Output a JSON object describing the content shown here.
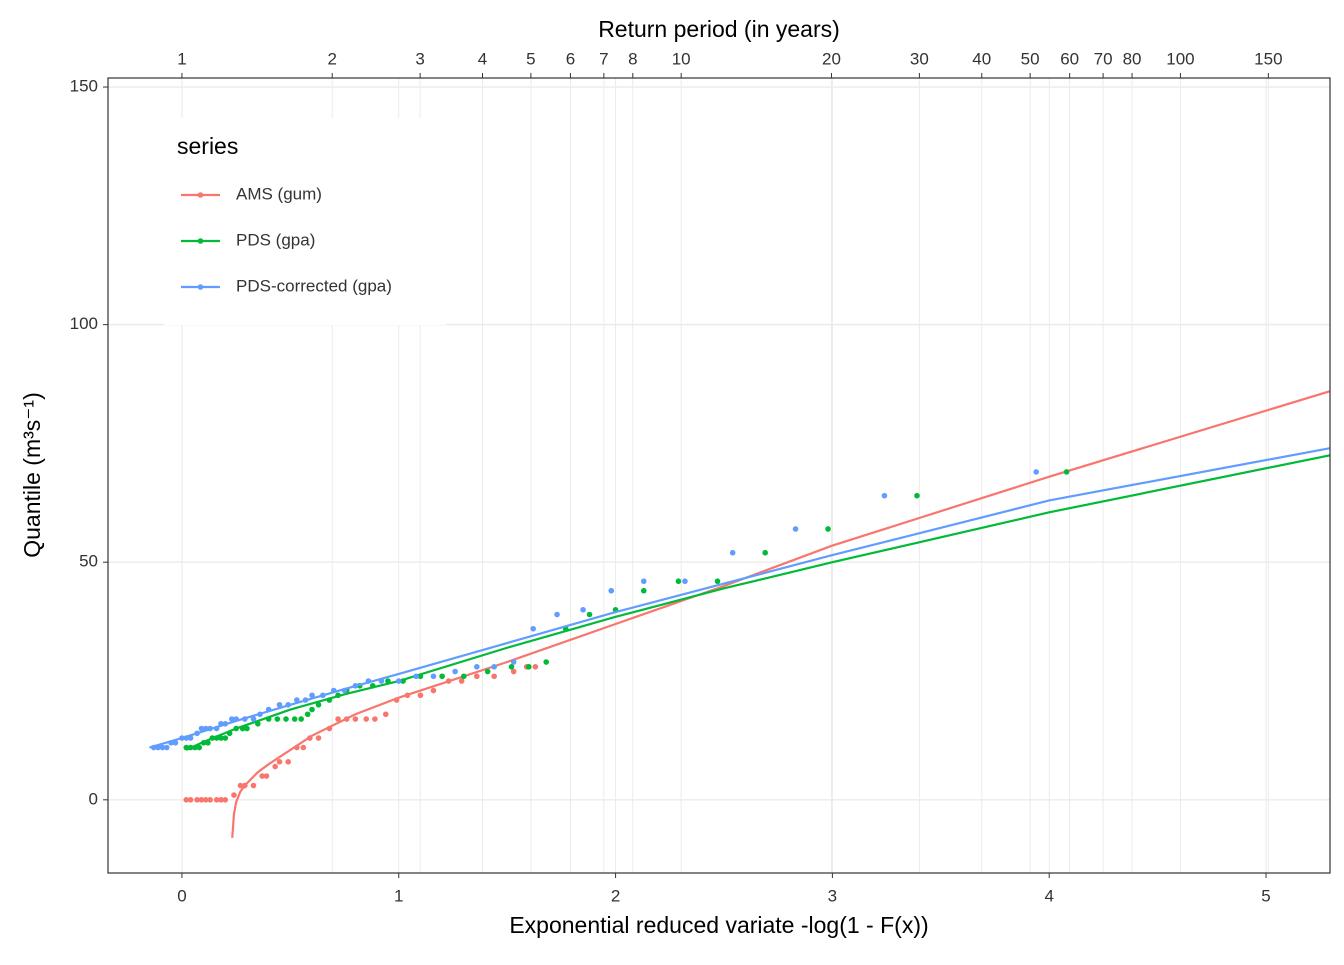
{
  "chart_data": {
    "type": "scatter-fit",
    "x_label": "Exponential reduced variate -log(1 - F(x))",
    "y_label": "Quantile (m³s⁻¹)",
    "x2_label": "Return period (in years)",
    "xlim": [
      -0.341,
      5.295
    ],
    "ylim": [
      -15.4,
      151.9
    ],
    "xticks": [
      0,
      1,
      2,
      3,
      4,
      5
    ],
    "yticks": [
      0,
      50,
      100,
      150
    ],
    "x2ticks": [
      1,
      2,
      3,
      4,
      5,
      6,
      7,
      8,
      10,
      20,
      30,
      40,
      50,
      60,
      70,
      80,
      100,
      150
    ],
    "x2_transform": "ln",
    "grid": true,
    "legend_title": "series",
    "legend_position": "top-left",
    "series": [
      {
        "name": "AMS (gum)",
        "color": "#f8766d",
        "x": [
          0.02,
          0.04,
          0.07,
          0.09,
          0.11,
          0.13,
          0.16,
          0.18,
          0.2,
          0.24,
          0.27,
          0.29,
          0.33,
          0.37,
          0.39,
          0.43,
          0.45,
          0.49,
          0.53,
          0.56,
          0.59,
          0.63,
          0.68,
          0.72,
          0.76,
          0.8,
          0.85,
          0.89,
          0.94,
          0.99,
          1.04,
          1.1,
          1.16,
          1.23,
          1.29,
          1.36,
          1.44,
          1.53,
          1.59,
          1.63
        ],
        "values": [
          0,
          0,
          0,
          0,
          0,
          0,
          0,
          0,
          0,
          1,
          3,
          3,
          3,
          5,
          5,
          7,
          8,
          8,
          11,
          11,
          13,
          13,
          15,
          17,
          17,
          17,
          17,
          17,
          18,
          21,
          22,
          22,
          23,
          25,
          25,
          26,
          26,
          27,
          28,
          28
        ],
        "fit_x": [
          0.232,
          0.24,
          0.25,
          0.27,
          0.3,
          0.35,
          0.4,
          0.5,
          0.6,
          0.8,
          1.0,
          1.2,
          1.5,
          2.0,
          2.5,
          3.0,
          4.0,
          5.295
        ],
        "fit_values": [
          -8,
          -3,
          -0.5,
          1.8,
          3.5,
          5.8,
          7.5,
          10.5,
          13.5,
          18,
          21.5,
          24.5,
          29,
          37,
          45,
          53.5,
          68,
          86
        ]
      },
      {
        "name": "PDS (gpa)",
        "color": "#00ba38",
        "x": [
          0.02,
          0.04,
          0.06,
          0.08,
          0.1,
          0.12,
          0.14,
          0.16,
          0.18,
          0.2,
          0.22,
          0.25,
          0.28,
          0.3,
          0.35,
          0.4,
          0.44,
          0.48,
          0.52,
          0.55,
          0.58,
          0.6,
          0.63,
          0.68,
          0.72,
          0.76,
          0.82,
          0.88,
          0.95,
          1.02,
          1.1,
          1.2,
          1.3,
          1.41,
          1.52,
          1.6,
          1.68,
          1.77,
          1.88,
          2.0,
          2.13,
          2.29,
          2.47,
          2.69,
          2.98,
          3.39,
          4.08
        ],
        "values": [
          11,
          11,
          11,
          11,
          12,
          12,
          13,
          13,
          13,
          13,
          14,
          15,
          15,
          15,
          16,
          17,
          17,
          17,
          17,
          17,
          18,
          19,
          20,
          21,
          22,
          23,
          24,
          24,
          25,
          25,
          26,
          26,
          26,
          27,
          28,
          28,
          29,
          36,
          39,
          40,
          44,
          46,
          46,
          52,
          57,
          64,
          69
        ],
        "fit_x": [
          0.02,
          0.1,
          0.25,
          0.5,
          0.75,
          1.0,
          1.5,
          2.0,
          2.5,
          3.0,
          4.0,
          5.295
        ],
        "fit_values": [
          10.5,
          12.2,
          15,
          19,
          22.2,
          25,
          32,
          38.5,
          44.5,
          50,
          60.5,
          72.5
        ]
      },
      {
        "name": "PDS-corrected (gpa)",
        "color": "#619cff",
        "x": [
          -0.13,
          -0.11,
          -0.09,
          -0.07,
          -0.05,
          -0.03,
          0,
          0.02,
          0.04,
          0.07,
          0.09,
          0.11,
          0.13,
          0.16,
          0.18,
          0.2,
          0.23,
          0.25,
          0.29,
          0.33,
          0.36,
          0.4,
          0.45,
          0.49,
          0.53,
          0.57,
          0.6,
          0.65,
          0.7,
          0.75,
          0.8,
          0.86,
          0.92,
          1.0,
          1.08,
          1.16,
          1.26,
          1.36,
          1.44,
          1.53,
          1.62,
          1.73,
          1.85,
          1.98,
          2.13,
          2.32,
          2.54,
          2.83,
          3.24,
          3.94
        ],
        "values": [
          11,
          11,
          11,
          11,
          12,
          12,
          13,
          13,
          13,
          14,
          15,
          15,
          15,
          15,
          16,
          16,
          17,
          17,
          17,
          17,
          18,
          19,
          20,
          20,
          21,
          21,
          22,
          22,
          23,
          23,
          24,
          25,
          25,
          25,
          26,
          26,
          27,
          28,
          28,
          29,
          36,
          39,
          40,
          44,
          46,
          46,
          52,
          57,
          64,
          69
        ],
        "fit_x": [
          -0.15,
          0,
          0.25,
          0.5,
          0.75,
          1.0,
          1.5,
          2.0,
          2.5,
          3.0,
          4.0,
          5.295
        ],
        "fit_values": [
          11,
          13,
          16.6,
          20,
          23.3,
          26.5,
          33,
          39.5,
          45.5,
          51.5,
          63,
          74
        ]
      }
    ]
  }
}
